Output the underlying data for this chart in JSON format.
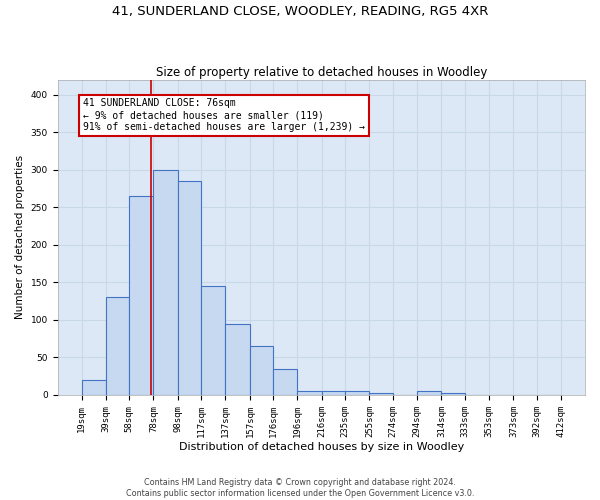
{
  "title": "41, SUNDERLAND CLOSE, WOODLEY, READING, RG5 4XR",
  "subtitle": "Size of property relative to detached houses in Woodley",
  "xlabel": "Distribution of detached houses by size in Woodley",
  "ylabel": "Number of detached properties",
  "bin_edges": [
    19,
    39,
    58,
    78,
    98,
    117,
    137,
    157,
    176,
    196,
    216,
    235,
    255,
    274,
    294,
    314,
    333,
    353,
    373,
    392,
    412
  ],
  "bar_heights": [
    20,
    130,
    265,
    300,
    285,
    145,
    95,
    65,
    35,
    5,
    5,
    5,
    3,
    0,
    5,
    3,
    0,
    0,
    0,
    0
  ],
  "bar_color": "#c6d9f1",
  "bar_edge_color": "#4472c4",
  "bar_linewidth": 0.8,
  "property_line_x": 76,
  "property_line_color": "#cc0000",
  "annotation_text": "41 SUNDERLAND CLOSE: 76sqm\n← 9% of detached houses are smaller (119)\n91% of semi-detached houses are larger (1,239) →",
  "annotation_box_color": "#ffffff",
  "annotation_box_edge_color": "#cc0000",
  "annotation_fontsize": 7.0,
  "ylim": [
    0,
    420
  ],
  "yticks": [
    0,
    50,
    100,
    150,
    200,
    250,
    300,
    350,
    400
  ],
  "grid_color": "#c8d8e8",
  "bg_color": "#dce8f5",
  "footer_text": "Contains HM Land Registry data © Crown copyright and database right 2024.\nContains public sector information licensed under the Open Government Licence v3.0.",
  "title_fontsize": 9.5,
  "subtitle_fontsize": 8.5,
  "xlabel_fontsize": 8,
  "ylabel_fontsize": 7.5,
  "tick_fontsize": 6.5,
  "footer_fontsize": 5.8
}
